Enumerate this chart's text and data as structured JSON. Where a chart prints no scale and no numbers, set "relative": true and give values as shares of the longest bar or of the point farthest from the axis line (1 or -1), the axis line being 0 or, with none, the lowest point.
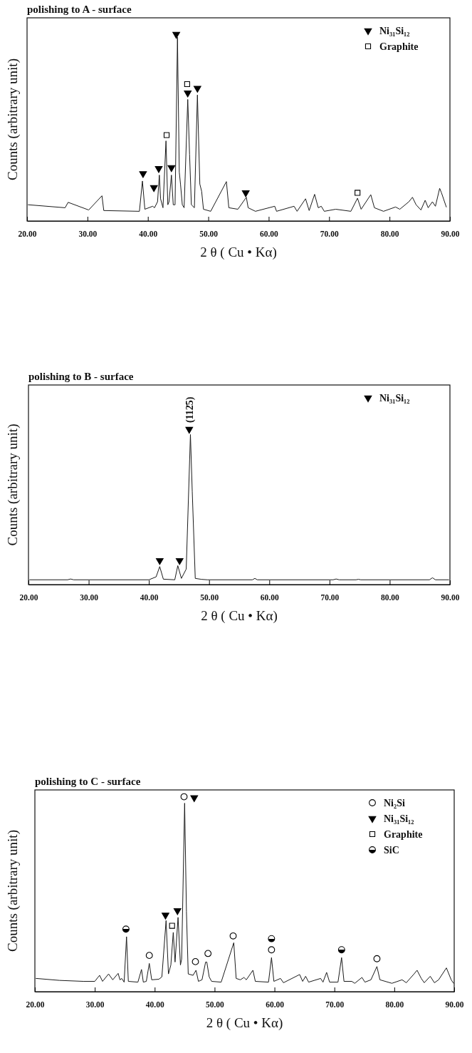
{
  "chart_data": [
    {
      "type": "line",
      "title": "polishing to A - surface",
      "xlabel": "2 θ ( Cu • Kα)",
      "ylabel": "Counts (arbitrary unit)",
      "relative": true,
      "legend": "top right",
      "xlim": [
        20,
        90
      ],
      "xticks": [
        {
          "value": 20,
          "label": "20.00"
        },
        {
          "value": 30,
          "label": "30.00"
        },
        {
          "value": 40,
          "label": "40.00"
        },
        {
          "value": 50,
          "label": "50.00"
        },
        {
          "value": 60,
          "label": "60.00"
        },
        {
          "value": 70,
          "label": "70.00"
        },
        {
          "value": 80,
          "label": "80.00"
        },
        {
          "value": 90,
          "label": "90.00"
        }
      ],
      "series": [
        {
          "type": "line",
          "color": "#1a1a1a",
          "x": [
            20.2,
            26.3,
            26.8,
            30.2,
            32.4,
            32.7,
            38.6,
            39.1,
            39.5,
            40.8,
            41.1,
            41.6,
            41.9,
            42.1,
            42.5,
            43.0,
            43.3,
            43.5,
            43.9,
            44.2,
            44.5,
            44.9,
            45.2,
            45.4,
            45.7,
            46.0,
            46.6,
            46.9,
            47.2,
            47.7,
            48.2,
            48.6,
            48.9,
            49.2,
            50.4,
            53.0,
            53.4,
            54.9,
            56.3,
            56.6,
            57.8,
            61.0,
            61.3,
            64.2,
            64.7,
            66.1,
            66.7,
            67.6,
            68.2,
            68.7,
            69.2,
            71.1,
            73.6,
            74.7,
            75.3,
            76.9,
            77.5,
            79.0,
            81.0,
            81.7,
            83.2,
            83.8,
            84.4,
            85.2,
            85.9,
            86.4,
            87.1,
            87.6,
            88.3,
            88.6,
            89.4
          ],
          "values": [
            0.087,
            0.071,
            0.1,
            0.059,
            0.135,
            0.056,
            0.052,
            0.214,
            0.063,
            0.079,
            0.071,
            0.103,
            0.246,
            0.119,
            0.071,
            0.429,
            0.087,
            0.103,
            0.246,
            0.087,
            0.087,
            0.984,
            0.262,
            0.198,
            0.087,
            0.071,
            0.651,
            0.357,
            0.087,
            0.071,
            0.675,
            0.198,
            0.159,
            0.063,
            0.052,
            0.211,
            0.071,
            0.063,
            0.127,
            0.071,
            0.052,
            0.079,
            0.052,
            0.079,
            0.052,
            0.119,
            0.056,
            0.143,
            0.071,
            0.079,
            0.052,
            0.063,
            0.052,
            0.122,
            0.063,
            0.141,
            0.071,
            0.052,
            0.075,
            0.063,
            0.103,
            0.127,
            0.087,
            0.059,
            0.111,
            0.071,
            0.103,
            0.079,
            0.175,
            0.151,
            0.075
          ]
        },
        {
          "type": "scatter",
          "name": "Ni₃₁Si₁₂",
          "color": "#000000",
          "marker": "triangle",
          "x": [
            39.2,
            41.0,
            41.8,
            43.9,
            44.7,
            46.6,
            48.2,
            56.2
          ],
          "values": [
            0.254,
            0.179,
            0.281,
            0.286,
            1,
            0.686,
            0.711,
            0.151
          ]
        },
        {
          "type": "scatter",
          "name": "Graphite",
          "color": "#000000",
          "marker": "square",
          "x": [
            43.1,
            46.5,
            74.7
          ],
          "values": [
            0.46,
            0.733,
            0.151
          ]
        }
      ]
    },
    {
      "type": "line",
      "title": "polishing to B - surface",
      "xlabel": "2 θ ( Cu • Kα)",
      "ylabel": "Counts (arbitrary unit)",
      "relative": true,
      "legend": "top right",
      "xlim": [
        20,
        90
      ],
      "xticks": [
        {
          "value": 20,
          "label": "20.00"
        },
        {
          "value": 30,
          "label": "30.00"
        },
        {
          "value": 40,
          "label": "40.00"
        },
        {
          "value": 50,
          "label": "50.00"
        },
        {
          "value": 60,
          "label": "60.00"
        },
        {
          "value": 70,
          "label": "70.00"
        },
        {
          "value": 80,
          "label": "80.00"
        },
        {
          "value": 90,
          "label": "90.00"
        }
      ],
      "annotations": [
        {
          "text": "(112̄5)",
          "x": 46.7,
          "y": 1
        }
      ],
      "series": [
        {
          "type": "line",
          "color": "#1a1a1a",
          "x": [
            20.2,
            26.5,
            27.0,
            27.5,
            40.0,
            41.2,
            41.8,
            42.4,
            44.3,
            44.8,
            45.4,
            46.2,
            46.9,
            47.2,
            47.7,
            48.7,
            49.7,
            57.2,
            57.6,
            58.0,
            70.6,
            71.1,
            71.6,
            74.4,
            74.8,
            75.2,
            86.6,
            87.1,
            87.6,
            89.8
          ],
          "values": [
            0.031,
            0.031,
            0.036,
            0.031,
            0.031,
            0.05,
            0.116,
            0.035,
            0.031,
            0.122,
            0.04,
            0.1,
            0.966,
            0.6,
            0.04,
            0.034,
            0.031,
            0.031,
            0.04,
            0.031,
            0.031,
            0.036,
            0.031,
            0.031,
            0.034,
            0.031,
            0.031,
            0.044,
            0.031,
            0.031
          ]
        },
        {
          "type": "scatter",
          "name": "Ni₃₁Si₁₂",
          "color": "#000000",
          "marker": "triangle",
          "x": [
            41.8,
            45.1,
            46.7
          ],
          "values": [
            0.155,
            0.155,
            1
          ]
        }
      ]
    },
    {
      "type": "line",
      "title": "polishing to C - surface",
      "xlabel": "2 θ ( Cu • Kα)",
      "ylabel": "Counts (arbitrary unit)",
      "relative": true,
      "legend": "top right",
      "xlim": [
        20,
        90
      ],
      "xticks": [
        {
          "value": 20,
          "label": "20.00"
        },
        {
          "value": 30,
          "label": "30.00"
        },
        {
          "value": 40,
          "label": "40.00"
        },
        {
          "value": 50,
          "label": "50.00"
        },
        {
          "value": 60,
          "label": "60.00"
        },
        {
          "value": 70,
          "label": "70.00"
        },
        {
          "value": 80,
          "label": "80.00"
        },
        {
          "value": 90,
          "label": "90.00"
        }
      ],
      "series": [
        {
          "type": "line",
          "color": "#1a1a1a",
          "x": [
            20.2,
            24.1,
            28.1,
            30.0,
            30.8,
            31.3,
            32.3,
            33.0,
            33.9,
            34.2,
            34.5,
            34.9,
            35.3,
            35.6,
            37.2,
            37.8,
            38.1,
            38.6,
            39.1,
            39.5,
            40.7,
            41.2,
            41.9,
            42.3,
            42.7,
            43.1,
            43.4,
            43.9,
            44.3,
            44.5,
            45.0,
            45.3,
            45.6,
            46.4,
            46.9,
            47.3,
            47.9,
            48.5,
            48.7,
            49.1,
            49.5,
            51.1,
            53.2,
            53.6,
            54.3,
            54.9,
            55.3,
            56.4,
            56.8,
            59.0,
            59.5,
            59.9,
            61.0,
            61.5,
            64.2,
            64.7,
            65.2,
            65.7,
            67.7,
            68.1,
            68.7,
            69.2,
            70.6,
            71.2,
            71.6,
            72.9,
            73.4,
            74.6,
            75.1,
            76.1,
            77.1,
            77.6,
            79.6,
            81.3,
            82.0,
            83.3,
            83.8,
            84.5,
            85.0,
            86.0,
            86.7,
            87.4,
            88.7,
            89.5,
            89.9
          ],
          "values": [
            0.068,
            0.058,
            0.053,
            0.053,
            0.084,
            0.053,
            0.091,
            0.061,
            0.094,
            0.061,
            0.068,
            0.049,
            0.282,
            0.053,
            0.049,
            0.114,
            0.049,
            0.053,
            0.145,
            0.061,
            0.064,
            0.076,
            0.365,
            0.091,
            0.137,
            0.304,
            0.152,
            0.381,
            0.137,
            0.167,
            0.967,
            0.411,
            0.091,
            0.084,
            0.11,
            0.053,
            0.061,
            0.152,
            0.152,
            0.076,
            0.053,
            0.049,
            0.251,
            0.068,
            0.061,
            0.073,
            0.061,
            0.11,
            0.053,
            0.049,
            0.175,
            0.053,
            0.068,
            0.046,
            0.088,
            0.053,
            0.079,
            0.049,
            0.068,
            0.049,
            0.099,
            0.049,
            0.049,
            0.175,
            0.053,
            0.053,
            0.043,
            0.073,
            0.049,
            0.061,
            0.129,
            0.061,
            0.043,
            0.061,
            0.046,
            0.091,
            0.11,
            0.068,
            0.046,
            0.079,
            0.046,
            0.061,
            0.122,
            0.061,
            0.043
          ]
        },
        {
          "type": "scatter",
          "name": "Ni₂Si",
          "color": "#000000",
          "marker": "circle",
          "x": [
            39.1,
            44.9,
            46.8,
            48.9,
            53.1,
            59.5,
            77.1
          ],
          "values": [
            0.186,
            1,
            0.154,
            0.196,
            0.286,
            0.215,
            0.169
          ]
        },
        {
          "type": "scatter",
          "name": "Ni₃₁Si₁₂",
          "color": "#000000",
          "marker": "triangle",
          "x": [
            41.8,
            43.8,
            46.6
          ],
          "values": [
            0.393,
            0.416,
            0.995
          ]
        },
        {
          "type": "scatter",
          "name": "Graphite",
          "color": "#000000",
          "marker": "square",
          "x": [
            42.9
          ],
          "values": [
            0.338
          ]
        },
        {
          "type": "scatter",
          "name": "SiC",
          "color": "#000000",
          "marker": "circle",
          "x": [
            35.2,
            59.5,
            71.2
          ],
          "values": [
            0.321,
            0.272,
            0.215
          ]
        }
      ]
    }
  ]
}
